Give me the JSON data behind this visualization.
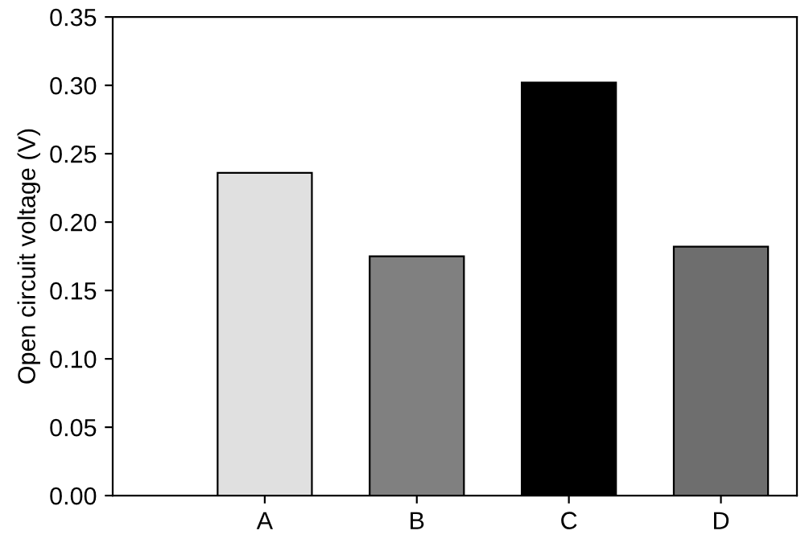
{
  "chart_data": {
    "type": "bar",
    "ylabel": "Open circuit voltage (V)",
    "categories": [
      "A",
      "B",
      "C",
      "D"
    ],
    "values": [
      0.236,
      0.175,
      0.302,
      0.182
    ],
    "colors": [
      "#e0e0e0",
      "#808080",
      "#000000",
      "#6e6e6e"
    ],
    "ylim": [
      0,
      0.35
    ],
    "yticks": [
      {
        "value": 0,
        "label": "0.00"
      },
      {
        "value": 0.05,
        "label": "0.05"
      },
      {
        "value": 0.1,
        "label": "0.10"
      },
      {
        "value": 0.15,
        "label": "0.15"
      },
      {
        "value": 0.2,
        "label": "0.20"
      },
      {
        "value": 0.25,
        "label": "0.25"
      },
      {
        "value": 0.3,
        "label": "0.30"
      },
      {
        "value": 0.35,
        "label": "0.35"
      }
    ],
    "grid": false
  }
}
